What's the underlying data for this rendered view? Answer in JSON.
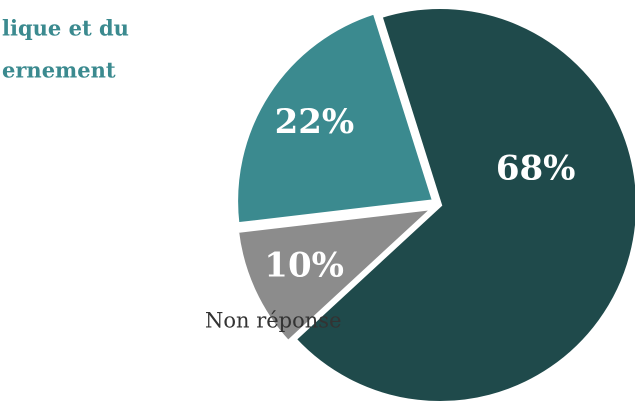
{
  "chart_data": {
    "type": "pie",
    "title_lines": [
      "lique et du",
      "ernement"
    ],
    "categories": [
      null,
      "Non réponse",
      null
    ],
    "values": [
      68,
      10,
      22
    ],
    "value_labels": [
      "68%",
      "10%",
      "22%"
    ],
    "colors": [
      "#1f4a4b",
      "#8c8c8c",
      "#3b8a8f"
    ]
  }
}
